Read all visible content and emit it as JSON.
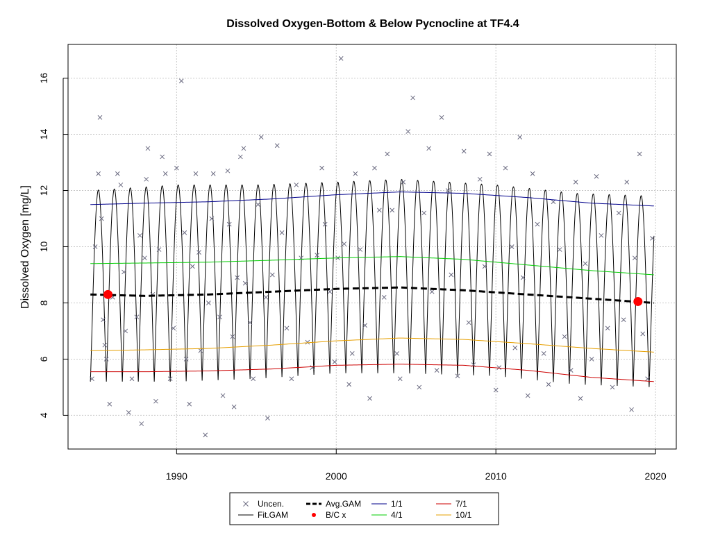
{
  "chart_data": {
    "type": "line",
    "title": "Dissolved Oxygen-Bottom & Below Pycnocline at TF4.4",
    "ylabel": "Dissolved Oxygen [mg/L]",
    "xlabel": "",
    "xlim": [
      1983.2,
      2021.3
    ],
    "ylim": [
      2.8,
      17.2
    ],
    "x_ticks": [
      1990,
      2000,
      2010,
      2020
    ],
    "y_ticks": [
      4,
      6,
      8,
      10,
      12,
      14,
      16
    ],
    "grid": true,
    "legend_position": "bottom-center",
    "legend": [
      {
        "label": "Uncen.",
        "symbol": "x",
        "color": "#6a6a80"
      },
      {
        "label": "Avg.GAM",
        "symbol": "dashed",
        "color": "#000000"
      },
      {
        "label": "1/1",
        "symbol": "line",
        "color": "#00008b"
      },
      {
        "label": "7/1",
        "symbol": "line",
        "color": "#cc0000"
      },
      {
        "label": "Fit.GAM",
        "symbol": "line",
        "color": "#000000"
      },
      {
        "label": "B/C x",
        "symbol": "dot",
        "color": "#ff0000"
      },
      {
        "label": "4/1",
        "symbol": "line",
        "color": "#00cc00"
      },
      {
        "label": "10/1",
        "symbol": "line",
        "color": "#e69f00"
      }
    ],
    "fit_gam": {
      "name": "Fit.GAM",
      "color": "#000000",
      "x_range": [
        1984.6,
        2019.9
      ],
      "peak_month_fraction": 0.1,
      "max_envelope": {
        "x": [
          1984.6,
          1990,
          1995,
          2000,
          2004,
          2010,
          2015,
          2019.9
        ],
        "y": [
          12.0,
          12.2,
          12.2,
          12.3,
          12.4,
          12.2,
          11.9,
          11.8
        ]
      },
      "min_envelope": {
        "x": [
          1984.6,
          1990,
          1995,
          2000,
          2004,
          2010,
          2015,
          2019.9
        ],
        "y": [
          5.2,
          5.2,
          5.3,
          5.5,
          5.5,
          5.4,
          5.1,
          5.0
        ]
      }
    },
    "series": [
      {
        "name": "1/1",
        "color": "#00008b",
        "x": [
          1984.6,
          1988,
          1992,
          1996,
          2000,
          2004,
          2008,
          2012,
          2016,
          2019.9
        ],
        "y": [
          11.5,
          11.55,
          11.6,
          11.7,
          11.85,
          11.95,
          11.9,
          11.75,
          11.55,
          11.45
        ]
      },
      {
        "name": "4/1",
        "color": "#00cc00",
        "x": [
          1984.6,
          1988,
          1992,
          1996,
          2000,
          2004,
          2008,
          2012,
          2016,
          2019.9
        ],
        "y": [
          9.4,
          9.42,
          9.45,
          9.52,
          9.6,
          9.65,
          9.55,
          9.35,
          9.15,
          9.0
        ]
      },
      {
        "name": "Avg.GAM",
        "color": "#000000",
        "dashed": true,
        "x": [
          1984.6,
          1988,
          1992,
          1996,
          2000,
          2004,
          2008,
          2012,
          2016,
          2019.9
        ],
        "y": [
          8.3,
          8.25,
          8.3,
          8.4,
          8.5,
          8.55,
          8.45,
          8.3,
          8.15,
          8.0
        ]
      },
      {
        "name": "10/1",
        "color": "#e69f00",
        "x": [
          1984.6,
          1988,
          1992,
          1996,
          2000,
          2004,
          2008,
          2012,
          2016,
          2019.9
        ],
        "y": [
          6.3,
          6.33,
          6.38,
          6.5,
          6.65,
          6.75,
          6.7,
          6.55,
          6.38,
          6.25
        ]
      },
      {
        "name": "7/1",
        "color": "#cc0000",
        "x": [
          1984.6,
          1988,
          1992,
          1996,
          2000,
          2004,
          2008,
          2012,
          2016,
          2019.9
        ],
        "y": [
          5.55,
          5.55,
          5.58,
          5.65,
          5.78,
          5.82,
          5.78,
          5.6,
          5.35,
          5.2
        ]
      }
    ],
    "bc_points": {
      "name": "B/C x",
      "color": "#ff0000",
      "x": [
        1985.7,
        2018.9
      ],
      "y": [
        8.3,
        8.05
      ]
    },
    "observations": {
      "name": "Uncen.",
      "color": "#6a6a80",
      "x": [
        1984.7,
        1984.9,
        1985.1,
        1985.2,
        1985.3,
        1985.4,
        1985.5,
        1985.6,
        1985.8,
        1986.0,
        1986.3,
        1986.5,
        1986.7,
        1986.8,
        1987.0,
        1987.2,
        1987.5,
        1987.7,
        1987.8,
        1988.0,
        1988.1,
        1988.2,
        1988.5,
        1988.7,
        1988.9,
        1989.1,
        1989.3,
        1989.6,
        1989.8,
        1990.0,
        1990.3,
        1990.5,
        1990.6,
        1990.8,
        1991.0,
        1991.2,
        1991.4,
        1991.5,
        1991.8,
        1992.0,
        1992.2,
        1992.3,
        1992.7,
        1992.9,
        1993.2,
        1993.3,
        1993.5,
        1993.6,
        1993.8,
        1994.0,
        1994.2,
        1994.3,
        1994.6,
        1994.8,
        1995.1,
        1995.3,
        1995.6,
        1995.7,
        1996.0,
        1996.3,
        1996.6,
        1996.9,
        1997.2,
        1997.5,
        1997.8,
        1998.2,
        1998.5,
        1998.8,
        1999.1,
        1999.3,
        1999.6,
        1999.9,
        2000.1,
        2000.3,
        2000.5,
        2000.8,
        2001.0,
        2001.2,
        2001.5,
        2001.8,
        2002.1,
        2002.4,
        2002.7,
        2003.0,
        2003.2,
        2003.5,
        2003.8,
        2004.0,
        2004.2,
        2004.5,
        2004.8,
        2005.2,
        2005.5,
        2005.8,
        2006.0,
        2006.3,
        2006.6,
        2007.0,
        2007.2,
        2007.6,
        2008.0,
        2008.3,
        2008.6,
        2009.0,
        2009.3,
        2009.6,
        2010.0,
        2010.2,
        2010.6,
        2011.0,
        2011.2,
        2011.5,
        2011.7,
        2012.0,
        2012.3,
        2012.6,
        2013.0,
        2013.3,
        2013.6,
        2014.0,
        2014.3,
        2014.7,
        2015.0,
        2015.3,
        2015.6,
        2016.0,
        2016.3,
        2016.6,
        2017.0,
        2017.3,
        2017.7,
        2018.0,
        2018.2,
        2018.5,
        2018.7,
        2019.0,
        2019.2,
        2019.5,
        2019.8
      ],
      "y": [
        5.3,
        10.0,
        12.6,
        14.6,
        11.0,
        7.4,
        6.5,
        6.0,
        4.4,
        8.2,
        12.6,
        12.2,
        9.1,
        7.0,
        4.1,
        5.3,
        7.5,
        10.4,
        3.7,
        9.6,
        12.4,
        13.5,
        8.3,
        4.5,
        9.9,
        13.2,
        12.6,
        5.3,
        7.1,
        12.8,
        15.9,
        10.5,
        6.0,
        4.4,
        9.3,
        12.6,
        9.8,
        6.3,
        3.3,
        8.0,
        11.0,
        12.6,
        7.5,
        4.7,
        12.7,
        10.8,
        6.8,
        4.3,
        8.9,
        13.2,
        13.5,
        8.7,
        7.3,
        5.3,
        11.5,
        13.9,
        8.2,
        3.9,
        9.0,
        13.6,
        10.5,
        7.1,
        5.3,
        12.2,
        9.6,
        6.6,
        5.7,
        9.7,
        12.8,
        10.8,
        8.4,
        5.9,
        9.6,
        16.7,
        10.1,
        5.1,
        6.2,
        12.6,
        9.9,
        7.2,
        4.6,
        12.8,
        11.3,
        8.2,
        13.3,
        11.3,
        6.2,
        5.3,
        12.3,
        14.1,
        15.3,
        5.0,
        11.2,
        13.5,
        8.4,
        5.6,
        14.6,
        12.0,
        9.0,
        5.4,
        13.4,
        7.3,
        5.8,
        12.4,
        9.3,
        13.3,
        4.9,
        5.7,
        12.8,
        10.0,
        6.4,
        13.9,
        8.9,
        4.7,
        12.6,
        10.8,
        6.2,
        5.1,
        11.6,
        9.9,
        6.8,
        5.6,
        12.3,
        4.6,
        9.4,
        6.0,
        12.5,
        10.4,
        7.1,
        5.0,
        11.2,
        7.4,
        12.3,
        4.2,
        9.6,
        13.3,
        6.9,
        5.3,
        10.3
      ]
    }
  }
}
